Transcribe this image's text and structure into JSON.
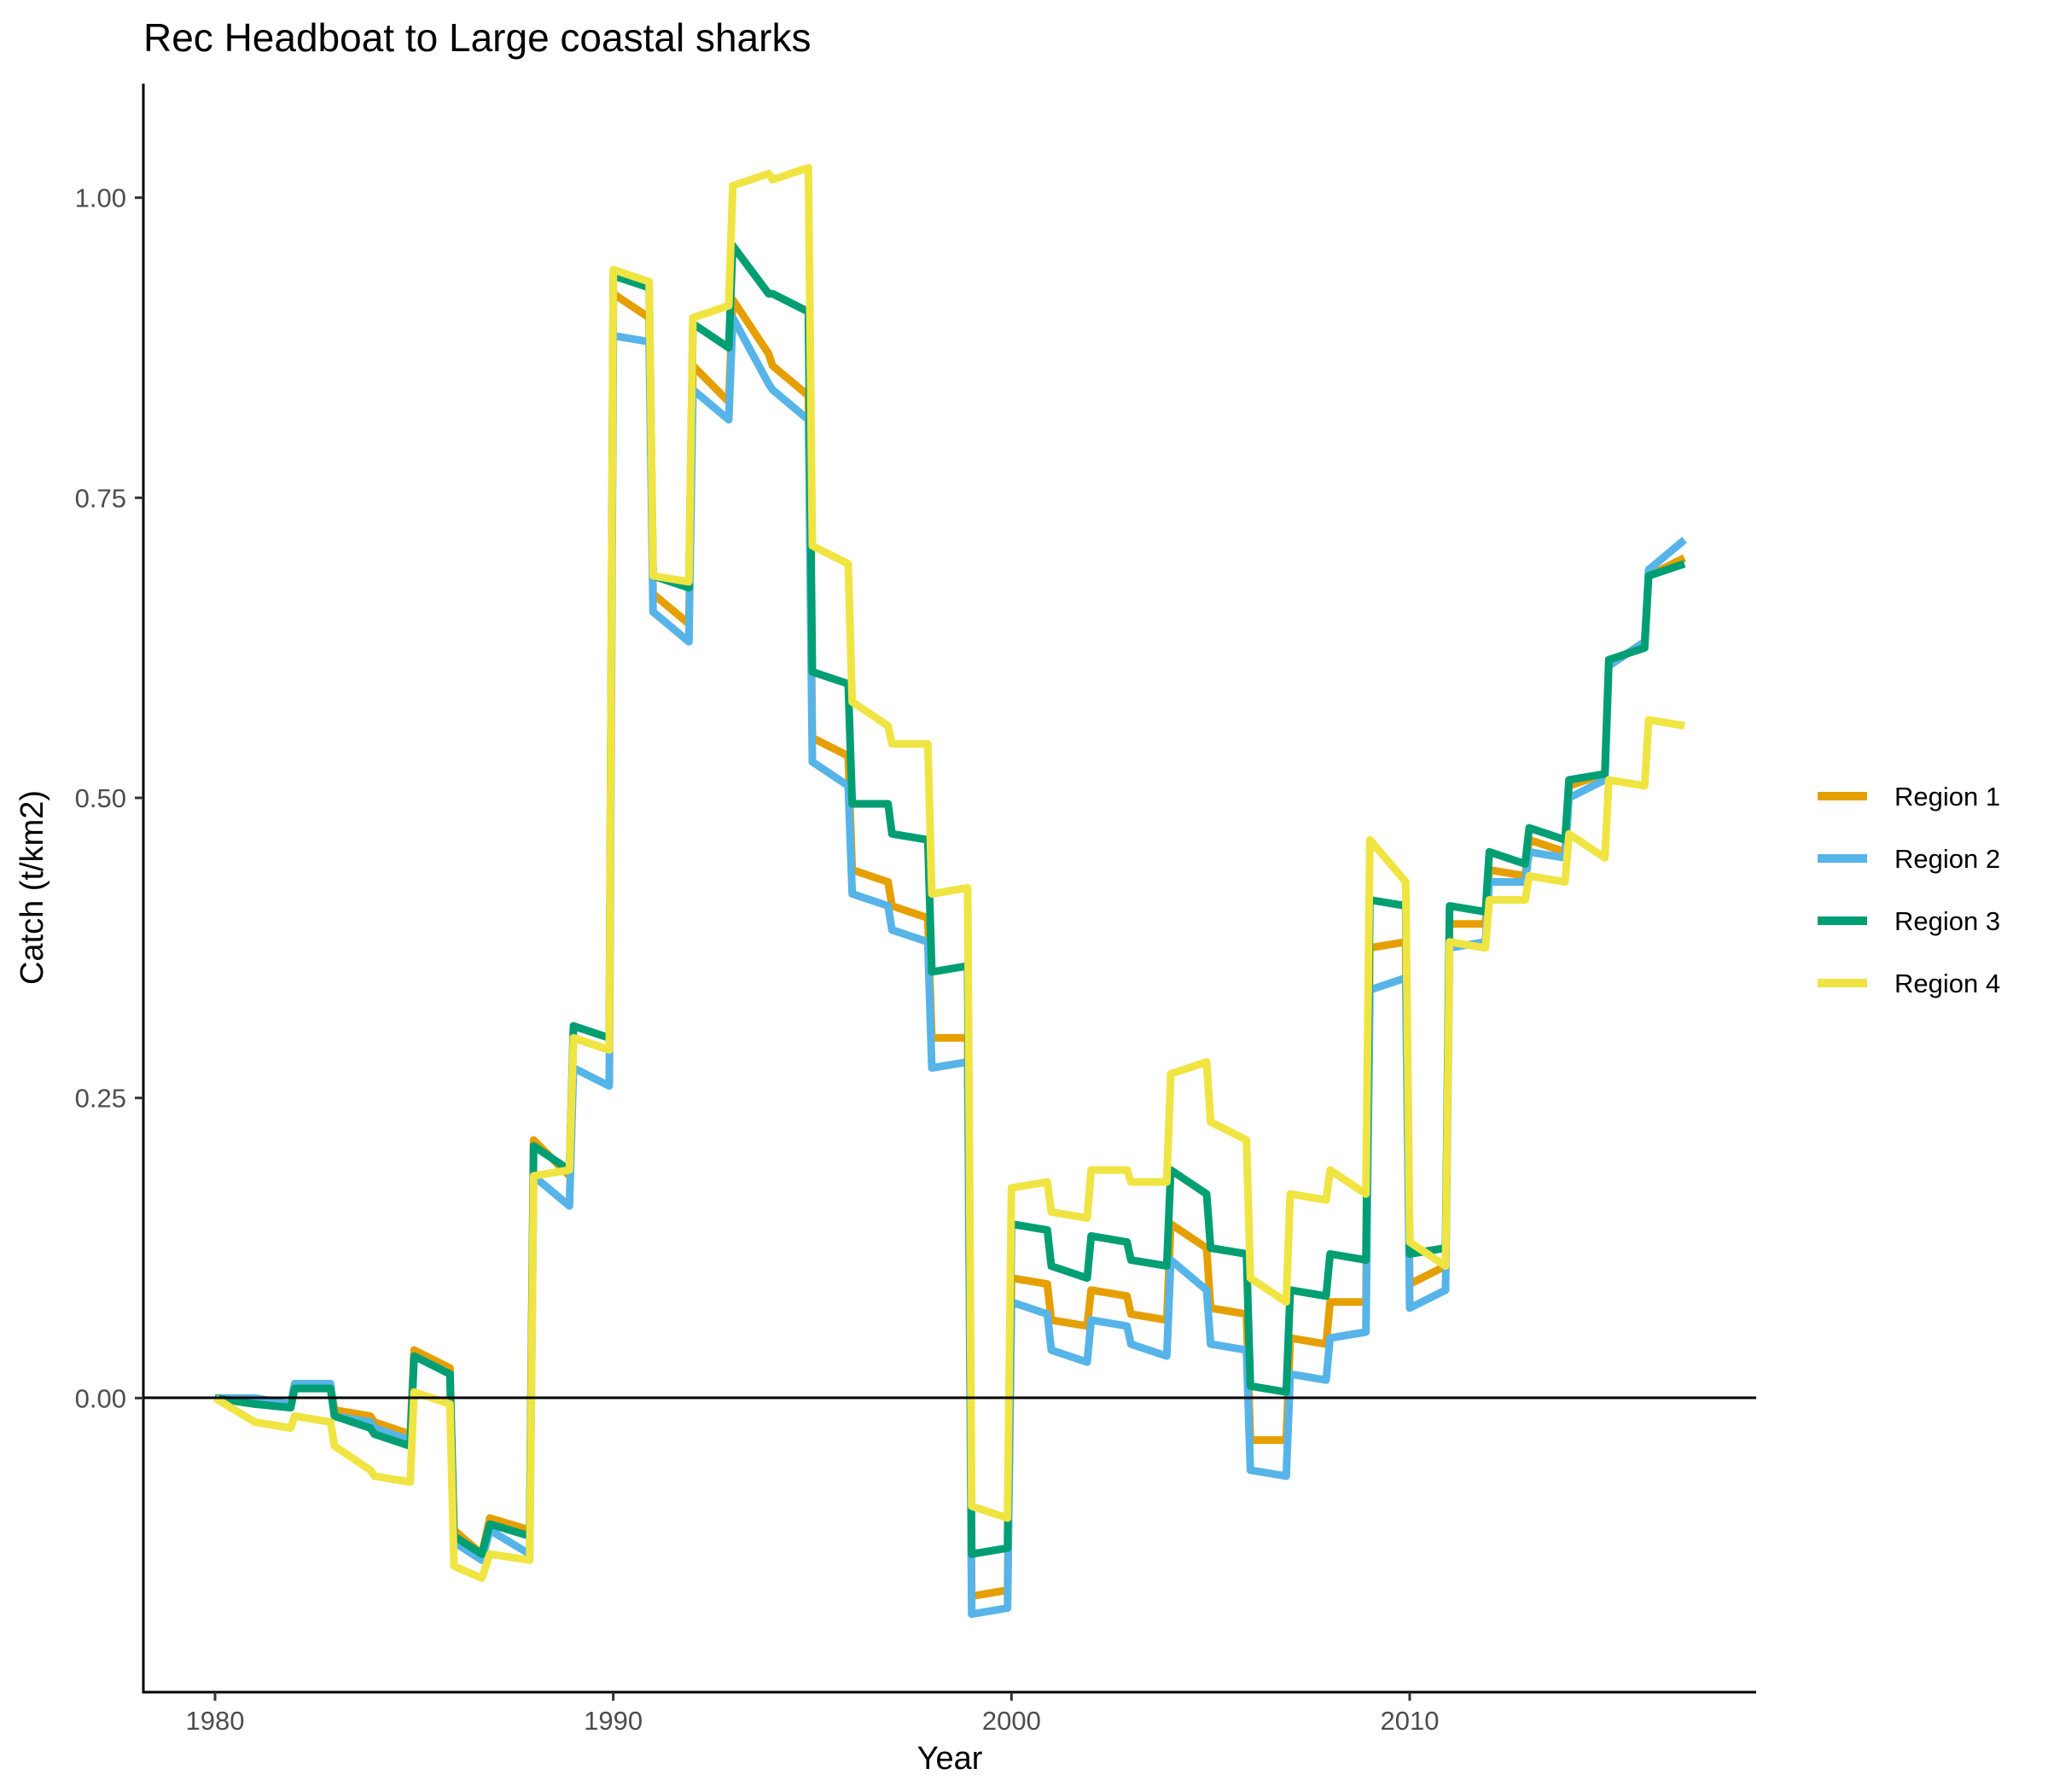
{
  "chart_data": {
    "type": "line",
    "title": "Rec Headboat to Large coastal sharks",
    "xlabel": "Year",
    "ylabel": "Catch (t/km2)",
    "xlim": [
      1978.2,
      2018.7
    ],
    "ylim": [
      -0.245,
      1.095
    ],
    "x_ticks": [
      1980,
      1990,
      2000,
      2010
    ],
    "x_tick_labels": [
      "1980",
      "1990",
      "2000",
      "2010"
    ],
    "y_ticks": [
      0,
      0.25,
      0.5,
      0.75,
      1.0
    ],
    "y_tick_labels": [
      "0.00",
      "0.25",
      "0.50",
      "0.75",
      "1.00"
    ],
    "hline_y": 0,
    "grid": false,
    "legend_position": "right",
    "series": [
      {
        "name": "Region 1",
        "color": "#E69F00",
        "points": [
          [
            1980,
            0
          ],
          [
            1981,
            -0.005
          ],
          [
            1981.9,
            -0.005
          ],
          [
            1982,
            0.01
          ],
          [
            1982.9,
            0.01
          ],
          [
            1983,
            -0.01
          ],
          [
            1983.9,
            -0.015
          ],
          [
            1984,
            -0.02
          ],
          [
            1984.9,
            -0.03
          ],
          [
            1985,
            0.04
          ],
          [
            1985.9,
            0.025
          ],
          [
            1986,
            -0.11
          ],
          [
            1986.7,
            -0.13
          ],
          [
            1986.9,
            -0.1
          ],
          [
            1987.9,
            -0.11
          ],
          [
            1988,
            0.215
          ],
          [
            1988.9,
            0.185
          ],
          [
            1989,
            0.3
          ],
          [
            1989.9,
            0.29
          ],
          [
            1990,
            0.92
          ],
          [
            1990.9,
            0.9
          ],
          [
            1991,
            0.67
          ],
          [
            1991.9,
            0.645
          ],
          [
            1992,
            0.86
          ],
          [
            1992.9,
            0.83
          ],
          [
            1993,
            0.915
          ],
          [
            1993.9,
            0.87
          ],
          [
            1994,
            0.86
          ],
          [
            1994.9,
            0.835
          ],
          [
            1995,
            0.55
          ],
          [
            1995.9,
            0.535
          ],
          [
            1996,
            0.44
          ],
          [
            1996.9,
            0.43
          ],
          [
            1997,
            0.41
          ],
          [
            1997.9,
            0.4
          ],
          [
            1998,
            0.3
          ],
          [
            1998.9,
            0.3
          ],
          [
            1999,
            -0.165
          ],
          [
            1999.9,
            -0.16
          ],
          [
            2000,
            0.1
          ],
          [
            2000.9,
            0.095
          ],
          [
            2001,
            0.065
          ],
          [
            2001.9,
            0.06
          ],
          [
            2002,
            0.09
          ],
          [
            2002.9,
            0.085
          ],
          [
            2003,
            0.07
          ],
          [
            2003.9,
            0.065
          ],
          [
            2004,
            0.145
          ],
          [
            2004.9,
            0.125
          ],
          [
            2005,
            0.075
          ],
          [
            2005.9,
            0.07
          ],
          [
            2006,
            -0.035
          ],
          [
            2006.9,
            -0.035
          ],
          [
            2007,
            0.05
          ],
          [
            2007.9,
            0.045
          ],
          [
            2008,
            0.08
          ],
          [
            2008.9,
            0.08
          ],
          [
            2009,
            0.375
          ],
          [
            2009.9,
            0.38
          ],
          [
            2010,
            0.095
          ],
          [
            2010.9,
            0.11
          ],
          [
            2011,
            0.395
          ],
          [
            2011.9,
            0.395
          ],
          [
            2012,
            0.44
          ],
          [
            2012.9,
            0.435
          ],
          [
            2013,
            0.465
          ],
          [
            2013.9,
            0.455
          ],
          [
            2014,
            0.51
          ],
          [
            2014.9,
            0.52
          ],
          [
            2015,
            0.61
          ],
          [
            2015.9,
            0.63
          ],
          [
            2016,
            0.685
          ],
          [
            2016.9,
            0.7
          ]
        ]
      },
      {
        "name": "Region 2",
        "color": "#56B4E9",
        "points": [
          [
            1980,
            0
          ],
          [
            1981,
            0
          ],
          [
            1981.9,
            -0.005
          ],
          [
            1982,
            0.012
          ],
          [
            1982.9,
            0.012
          ],
          [
            1983,
            -0.015
          ],
          [
            1983.9,
            -0.02
          ],
          [
            1984,
            -0.025
          ],
          [
            1984.9,
            -0.035
          ],
          [
            1985,
            0.035
          ],
          [
            1985.9,
            0.02
          ],
          [
            1986,
            -0.12
          ],
          [
            1986.7,
            -0.135
          ],
          [
            1986.9,
            -0.11
          ],
          [
            1987.9,
            -0.13
          ],
          [
            1988,
            0.185
          ],
          [
            1988.9,
            0.16
          ],
          [
            1989,
            0.275
          ],
          [
            1989.9,
            0.26
          ],
          [
            1990,
            0.885
          ],
          [
            1990.9,
            0.88
          ],
          [
            1991,
            0.655
          ],
          [
            1991.9,
            0.63
          ],
          [
            1992,
            0.84
          ],
          [
            1992.9,
            0.815
          ],
          [
            1993,
            0.9
          ],
          [
            1993.9,
            0.845
          ],
          [
            1994,
            0.84
          ],
          [
            1994.9,
            0.815
          ],
          [
            1995,
            0.53
          ],
          [
            1995.9,
            0.51
          ],
          [
            1996,
            0.42
          ],
          [
            1996.9,
            0.41
          ],
          [
            1997,
            0.39
          ],
          [
            1997.9,
            0.38
          ],
          [
            1998,
            0.275
          ],
          [
            1998.9,
            0.28
          ],
          [
            1999,
            -0.18
          ],
          [
            1999.9,
            -0.175
          ],
          [
            2000,
            0.08
          ],
          [
            2000.9,
            0.07
          ],
          [
            2001,
            0.04
          ],
          [
            2001.9,
            0.03
          ],
          [
            2002,
            0.065
          ],
          [
            2002.9,
            0.06
          ],
          [
            2003,
            0.045
          ],
          [
            2003.9,
            0.035
          ],
          [
            2004,
            0.115
          ],
          [
            2004.9,
            0.09
          ],
          [
            2005,
            0.045
          ],
          [
            2005.9,
            0.04
          ],
          [
            2006,
            -0.06
          ],
          [
            2006.9,
            -0.065
          ],
          [
            2007,
            0.02
          ],
          [
            2007.9,
            0.015
          ],
          [
            2008,
            0.05
          ],
          [
            2008.9,
            0.055
          ],
          [
            2009,
            0.34
          ],
          [
            2009.9,
            0.35
          ],
          [
            2010,
            0.075
          ],
          [
            2010.9,
            0.09
          ],
          [
            2011,
            0.375
          ],
          [
            2011.9,
            0.38
          ],
          [
            2012,
            0.43
          ],
          [
            2012.9,
            0.43
          ],
          [
            2013,
            0.455
          ],
          [
            2013.9,
            0.45
          ],
          [
            2014,
            0.5
          ],
          [
            2014.9,
            0.515
          ],
          [
            2015,
            0.61
          ],
          [
            2015.9,
            0.63
          ],
          [
            2016,
            0.69
          ],
          [
            2016.9,
            0.715
          ]
        ]
      },
      {
        "name": "Region 3",
        "color": "#009E73",
        "points": [
          [
            1980,
            0
          ],
          [
            1981,
            -0.005
          ],
          [
            1981.9,
            -0.008
          ],
          [
            1982,
            0.008
          ],
          [
            1982.9,
            0.008
          ],
          [
            1983,
            -0.015
          ],
          [
            1983.9,
            -0.025
          ],
          [
            1984,
            -0.03
          ],
          [
            1984.9,
            -0.04
          ],
          [
            1985,
            0.035
          ],
          [
            1985.9,
            0.02
          ],
          [
            1986,
            -0.115
          ],
          [
            1986.7,
            -0.13
          ],
          [
            1986.9,
            -0.105
          ],
          [
            1987.9,
            -0.115
          ],
          [
            1988,
            0.21
          ],
          [
            1988.9,
            0.19
          ],
          [
            1989,
            0.31
          ],
          [
            1989.9,
            0.3
          ],
          [
            1990,
            0.935
          ],
          [
            1990.9,
            0.925
          ],
          [
            1991,
            0.685
          ],
          [
            1991.9,
            0.675
          ],
          [
            1992,
            0.895
          ],
          [
            1992.9,
            0.875
          ],
          [
            1993,
            0.96
          ],
          [
            1993.9,
            0.92
          ],
          [
            1994,
            0.92
          ],
          [
            1994.9,
            0.905
          ],
          [
            1995,
            0.605
          ],
          [
            1995.9,
            0.595
          ],
          [
            1996,
            0.495
          ],
          [
            1996.9,
            0.495
          ],
          [
            1997,
            0.47
          ],
          [
            1997.9,
            0.465
          ],
          [
            1998,
            0.355
          ],
          [
            1998.9,
            0.36
          ],
          [
            1999,
            -0.13
          ],
          [
            1999.9,
            -0.125
          ],
          [
            2000,
            0.145
          ],
          [
            2000.9,
            0.14
          ],
          [
            2001,
            0.11
          ],
          [
            2001.9,
            0.1
          ],
          [
            2002,
            0.135
          ],
          [
            2002.9,
            0.13
          ],
          [
            2003,
            0.115
          ],
          [
            2003.9,
            0.11
          ],
          [
            2004,
            0.19
          ],
          [
            2004.9,
            0.17
          ],
          [
            2005,
            0.125
          ],
          [
            2005.9,
            0.12
          ],
          [
            2006,
            0.01
          ],
          [
            2006.9,
            0.005
          ],
          [
            2007,
            0.09
          ],
          [
            2007.9,
            0.085
          ],
          [
            2008,
            0.12
          ],
          [
            2008.9,
            0.115
          ],
          [
            2009,
            0.415
          ],
          [
            2009.9,
            0.41
          ],
          [
            2010,
            0.12
          ],
          [
            2010.9,
            0.125
          ],
          [
            2011,
            0.41
          ],
          [
            2011.9,
            0.405
          ],
          [
            2012,
            0.455
          ],
          [
            2012.9,
            0.445
          ],
          [
            2013,
            0.475
          ],
          [
            2013.9,
            0.465
          ],
          [
            2014,
            0.515
          ],
          [
            2014.9,
            0.52
          ],
          [
            2015,
            0.615
          ],
          [
            2015.9,
            0.625
          ],
          [
            2016,
            0.685
          ],
          [
            2016.9,
            0.695
          ]
        ]
      },
      {
        "name": "Region 4",
        "color": "#F0E442",
        "points": [
          [
            1980,
            0
          ],
          [
            1981,
            -0.02
          ],
          [
            1981.9,
            -0.025
          ],
          [
            1982,
            -0.015
          ],
          [
            1982.9,
            -0.02
          ],
          [
            1983,
            -0.04
          ],
          [
            1983.9,
            -0.06
          ],
          [
            1984,
            -0.065
          ],
          [
            1984.9,
            -0.07
          ],
          [
            1985,
            0.005
          ],
          [
            1985.9,
            -0.005
          ],
          [
            1986,
            -0.14
          ],
          [
            1986.7,
            -0.15
          ],
          [
            1986.9,
            -0.13
          ],
          [
            1987.9,
            -0.135
          ],
          [
            1988,
            0.185
          ],
          [
            1988.9,
            0.19
          ],
          [
            1989,
            0.3
          ],
          [
            1989.9,
            0.29
          ],
          [
            1990,
            0.94
          ],
          [
            1990.9,
            0.93
          ],
          [
            1991,
            0.685
          ],
          [
            1991.9,
            0.68
          ],
          [
            1992,
            0.9
          ],
          [
            1992.9,
            0.91
          ],
          [
            1993,
            1.01
          ],
          [
            1993.9,
            1.02
          ],
          [
            1994,
            1.015
          ],
          [
            1994.9,
            1.025
          ],
          [
            1995,
            0.71
          ],
          [
            1995.9,
            0.695
          ],
          [
            1996,
            0.58
          ],
          [
            1996.9,
            0.56
          ],
          [
            1997,
            0.545
          ],
          [
            1997.9,
            0.545
          ],
          [
            1998,
            0.42
          ],
          [
            1998.9,
            0.425
          ],
          [
            1999,
            -0.09
          ],
          [
            1999.9,
            -0.1
          ],
          [
            2000,
            0.175
          ],
          [
            2000.9,
            0.18
          ],
          [
            2001,
            0.155
          ],
          [
            2001.9,
            0.15
          ],
          [
            2002,
            0.19
          ],
          [
            2002.9,
            0.19
          ],
          [
            2003,
            0.18
          ],
          [
            2003.9,
            0.18
          ],
          [
            2004,
            0.27
          ],
          [
            2004.9,
            0.28
          ],
          [
            2005,
            0.23
          ],
          [
            2005.9,
            0.215
          ],
          [
            2006,
            0.1
          ],
          [
            2006.9,
            0.08
          ],
          [
            2007,
            0.17
          ],
          [
            2007.9,
            0.165
          ],
          [
            2008,
            0.19
          ],
          [
            2008.9,
            0.17
          ],
          [
            2009,
            0.465
          ],
          [
            2009.9,
            0.43
          ],
          [
            2010,
            0.13
          ],
          [
            2010.9,
            0.11
          ],
          [
            2011,
            0.38
          ],
          [
            2011.9,
            0.375
          ],
          [
            2012,
            0.415
          ],
          [
            2012.9,
            0.415
          ],
          [
            2013,
            0.435
          ],
          [
            2013.9,
            0.43
          ],
          [
            2014,
            0.47
          ],
          [
            2014.9,
            0.45
          ],
          [
            2015,
            0.515
          ],
          [
            2015.9,
            0.51
          ],
          [
            2016,
            0.565
          ],
          [
            2016.9,
            0.56
          ]
        ]
      }
    ]
  }
}
